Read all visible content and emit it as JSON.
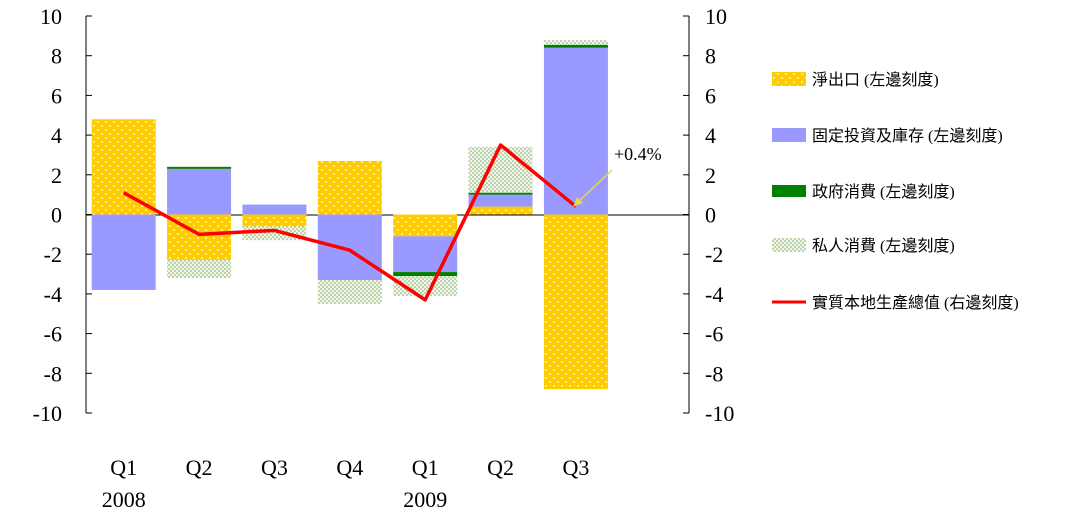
{
  "chart_data": {
    "type": "bar",
    "categories": [
      "Q1",
      "Q2",
      "Q3",
      "Q4",
      "Q1",
      "Q2",
      "Q3"
    ],
    "years": [
      "2008",
      "",
      "",
      "",
      "2009",
      "",
      ""
    ],
    "year_labels": [
      "2008",
      "2009"
    ],
    "ylim": [
      -10,
      10
    ],
    "y_ticks": [
      "10",
      "8",
      "6",
      "4",
      "2",
      "0",
      "-2",
      "-4",
      "-6",
      "-8",
      "-10"
    ],
    "y2_ticks": [
      "10",
      "8",
      "6",
      "4",
      "2",
      "0",
      "-2",
      "-4",
      "-6",
      "-8",
      "-10"
    ],
    "series": [
      {
        "name": "淨出口 (左邊刻度)",
        "kind": "bar",
        "color": "#FFCC00",
        "pattern": "dots-white",
        "values": [
          4.8,
          -2.3,
          -0.6,
          2.7,
          -1.1,
          0.4,
          -8.8
        ]
      },
      {
        "name": "固定投資及庫存 (左邊刻度)",
        "kind": "bar",
        "color": "#9999FF",
        "values": [
          -3.8,
          2.3,
          0.5,
          -3.3,
          -1.8,
          0.6,
          8.4
        ]
      },
      {
        "name": "政府消費 (左邊刻度)",
        "kind": "bar",
        "color": "#008000",
        "values": [
          0.0,
          0.1,
          0.0,
          0.0,
          -0.2,
          0.1,
          0.15
        ]
      },
      {
        "name": "私人消費 (左邊刻度)",
        "kind": "bar",
        "color": "#CCE0B8",
        "pattern": "dots-green",
        "values": [
          0.0,
          -0.9,
          -0.7,
          -1.2,
          -1.0,
          2.3,
          0.25
        ]
      },
      {
        "name": "實質本地生產總值 (右邊刻度)",
        "kind": "line",
        "color": "#FF0000",
        "values": [
          1.1,
          -1.0,
          -0.8,
          -1.8,
          -4.3,
          3.5,
          0.4
        ]
      }
    ],
    "annotation": {
      "text": "+0.4%",
      "point_index": 6
    },
    "legend_position": "right",
    "grid": false
  },
  "colors": {
    "net_exports": "#FFCC00",
    "investment": "#9999FF",
    "government": "#008000",
    "private": "#CCE0B8",
    "gdp_line": "#FF0000",
    "arrow": "#E6D84A"
  }
}
